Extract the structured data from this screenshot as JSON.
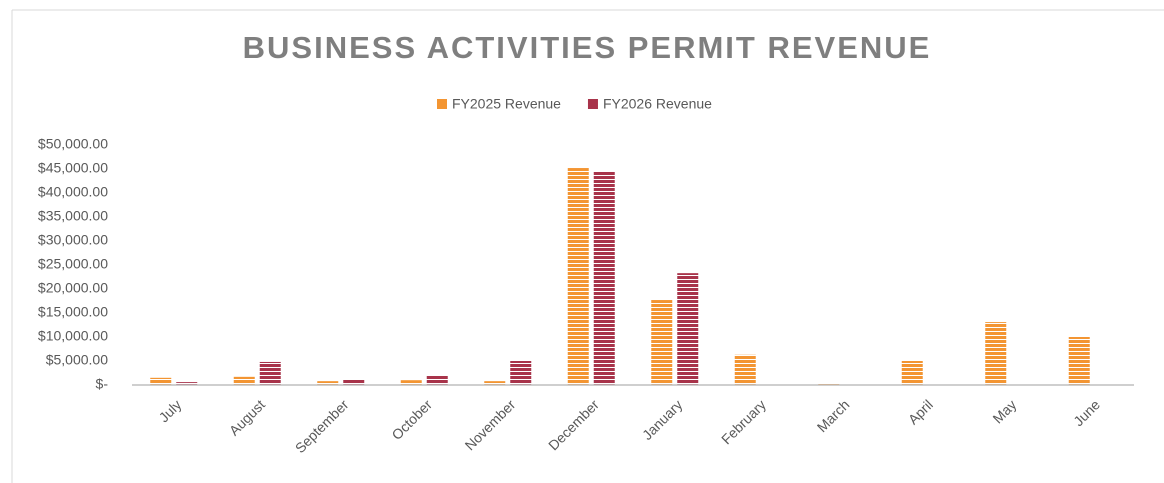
{
  "chart_data": {
    "type": "bar",
    "title": "BUSINESS ACTIVITIES PERMIT REVENUE",
    "categories": [
      "July",
      "August",
      "September",
      "October",
      "November",
      "December",
      "January",
      "February",
      "March",
      "April",
      "May",
      "June"
    ],
    "series": [
      {
        "name": "FY2025 Revenue",
        "color": "#f39532",
        "values": [
          1500,
          1700,
          800,
          1000,
          800,
          45200,
          17700,
          6300,
          400,
          5000,
          13100,
          10000
        ]
      },
      {
        "name": "FY2026 Revenue",
        "color": "#a8334a",
        "values": [
          600,
          4800,
          1200,
          1900,
          5000,
          44400,
          23300,
          null,
          null,
          null,
          null,
          null
        ]
      }
    ],
    "ylim": [
      0,
      50000
    ],
    "yticks": [
      {
        "value": 0,
        "label": "$-"
      },
      {
        "value": 5000,
        "label": "$5,000.00"
      },
      {
        "value": 10000,
        "label": "$10,000.00"
      },
      {
        "value": 15000,
        "label": "$15,000.00"
      },
      {
        "value": 20000,
        "label": "$20,000.00"
      },
      {
        "value": 25000,
        "label": "$25,000.00"
      },
      {
        "value": 30000,
        "label": "$30,000.00"
      },
      {
        "value": 35000,
        "label": "$35,000.00"
      },
      {
        "value": 40000,
        "label": "$40,000.00"
      },
      {
        "value": 45000,
        "label": "$45,000.00"
      },
      {
        "value": 50000,
        "label": "$50,000.00"
      }
    ],
    "grid": false,
    "legend": "top"
  }
}
